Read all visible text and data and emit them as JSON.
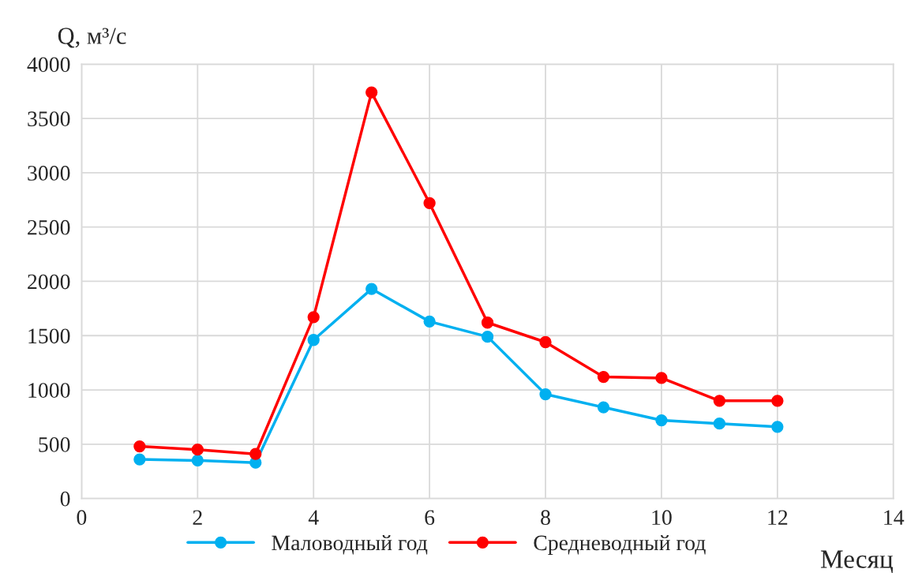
{
  "chart_data": {
    "type": "line",
    "ylabel": "Q, м³/с",
    "xlabel": "Месяц",
    "x": [
      1,
      2,
      3,
      4,
      5,
      6,
      7,
      8,
      9,
      10,
      11,
      12
    ],
    "series": [
      {
        "name": "Маловодный год",
        "color": "#00b0f0",
        "values": [
          360,
          350,
          330,
          1460,
          1930,
          1630,
          1490,
          960,
          840,
          720,
          690,
          660
        ]
      },
      {
        "name": "Средневодный год",
        "color": "#ff0000",
        "values": [
          480,
          450,
          410,
          1670,
          3740,
          2720,
          1620,
          1440,
          1120,
          1110,
          900,
          900
        ]
      }
    ],
    "xlim": [
      0,
      14
    ],
    "xticks": [
      0,
      2,
      4,
      6,
      8,
      10,
      12,
      14
    ],
    "ylim": [
      0,
      4000
    ],
    "yticks": [
      0,
      500,
      1000,
      1500,
      2000,
      2500,
      3000,
      3500,
      4000
    ],
    "grid": true,
    "legend": "bottom",
    "marker": "circle",
    "line_style": "solid"
  }
}
